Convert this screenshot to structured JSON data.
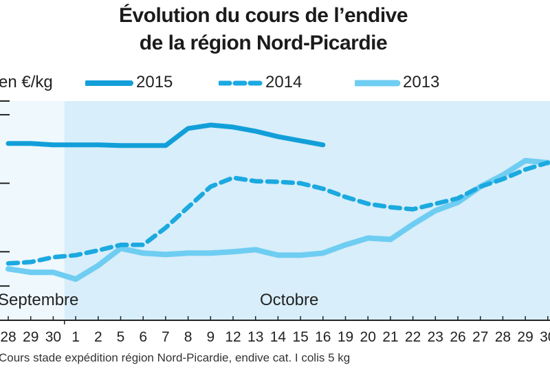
{
  "title": {
    "line1": "Évolution du cours de l’endive",
    "line2": "de la région Nord-Picardie"
  },
  "unit_label": "en €/kg",
  "footnote": "Cours stade expédition région Nord-Picardie, endive cat. I colis 5 kg",
  "colors": {
    "s2015": "#129fd9",
    "s2014": "#1ba9e0",
    "s2013": "#6fcdf2",
    "plot_bg_light": "#eef8fd",
    "plot_bg": "#d8eefa",
    "axis": "#222222"
  },
  "chart_data": {
    "type": "line",
    "title": "Évolution du cours de l’endive de la région Nord-Picardie",
    "ylabel": "en €/kg",
    "ylim": [
      0,
      3.2
    ],
    "grid": false,
    "legend_position": "top",
    "months": [
      {
        "label": "Septembre",
        "start_index": 0
      },
      {
        "label": "Octobre",
        "start_index": 4
      }
    ],
    "categories": [
      "28",
      "29",
      "30",
      "1",
      "2",
      "5",
      "6",
      "7",
      "8",
      "9",
      "12",
      "13",
      "14",
      "15",
      "16",
      "19",
      "20",
      "21",
      "22",
      "23",
      "26",
      "27",
      "28",
      "29",
      "30"
    ],
    "series": [
      {
        "name": "2015",
        "style": "solid-thick",
        "values": [
          2.58,
          2.58,
          2.56,
          2.56,
          2.56,
          2.55,
          2.55,
          2.55,
          2.8,
          2.85,
          2.82,
          2.76,
          2.68,
          2.62,
          2.56,
          null,
          null,
          null,
          null,
          null,
          null,
          null,
          null,
          null,
          null
        ]
      },
      {
        "name": "2014",
        "style": "dashed",
        "values": [
          0.83,
          0.85,
          0.92,
          0.95,
          1.02,
          1.1,
          1.1,
          1.35,
          1.65,
          1.95,
          2.08,
          2.03,
          2.02,
          2.0,
          1.92,
          1.8,
          1.7,
          1.65,
          1.62,
          1.7,
          1.78,
          1.95,
          2.06,
          2.2,
          2.3
        ]
      },
      {
        "name": "2013",
        "style": "solid-light",
        "values": [
          0.75,
          0.7,
          0.7,
          0.6,
          0.8,
          1.05,
          0.98,
          0.96,
          0.98,
          0.98,
          1.0,
          1.03,
          0.95,
          0.95,
          0.98,
          1.1,
          1.2,
          1.18,
          1.4,
          1.6,
          1.72,
          1.95,
          2.12,
          2.33,
          2.3
        ]
      }
    ]
  }
}
